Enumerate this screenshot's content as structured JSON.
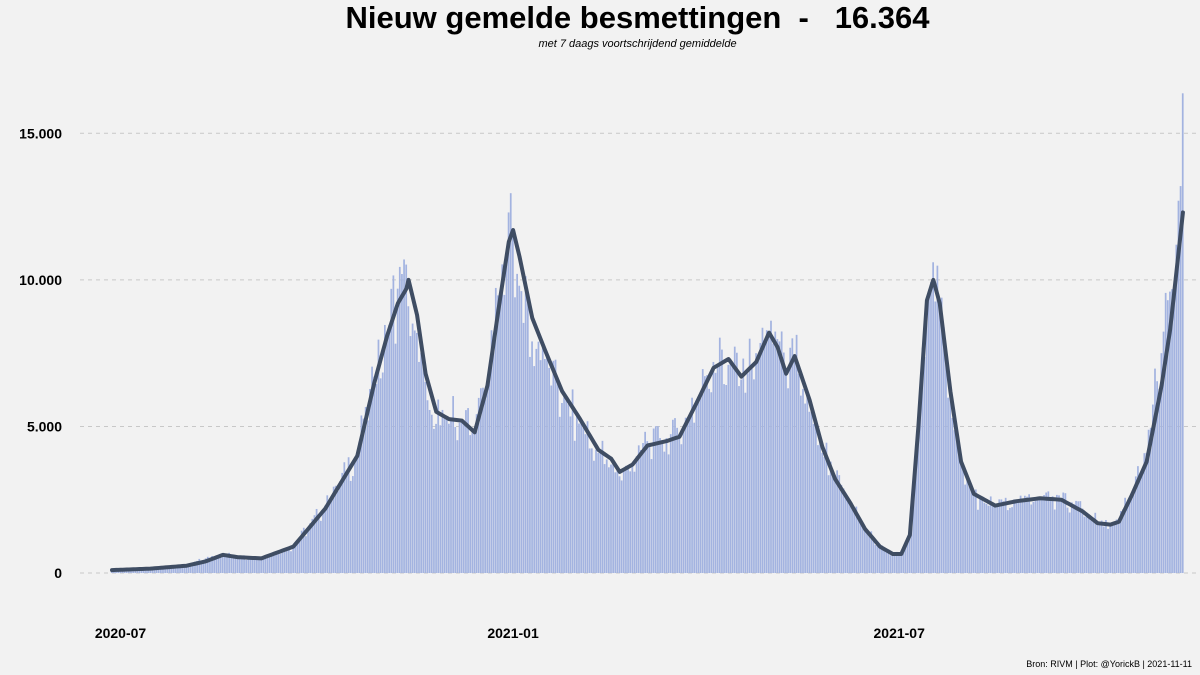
{
  "title": "Nieuw gemelde besmettingen  -   16.364",
  "subtitle": "met 7 daags voortschrijdend gemiddelde",
  "caption": "Bron: RIVM | Plot: @YorickB |  2021-11-11",
  "colors": {
    "background": "#f2f2f2",
    "bars": "#a3b3e0",
    "line": "#3f4d63",
    "grid": "#c8c8c8"
  },
  "chart_data": {
    "type": "bar",
    "x_type": "date",
    "x_start": "2020-06-27",
    "x_end": "2021-11-11",
    "xlim": [
      "2020-06-12",
      "2021-11-19"
    ],
    "ylim": [
      -1500,
      17500
    ],
    "yticks": [
      0,
      5000,
      10000,
      15000
    ],
    "ytick_labels": [
      "0",
      "5.000",
      "10.000",
      "15.000"
    ],
    "xticks": [
      "2020-07-01",
      "2021-01-01",
      "2021-07-01"
    ],
    "xtick_labels": [
      "2020-07",
      "2021-01",
      "2021-07"
    ],
    "grid": "horizontal dashed",
    "series": [
      {
        "kind": "bars",
        "values_at": [
          [
            "2020-06-27",
            80
          ],
          [
            "2020-07-15",
            120
          ],
          [
            "2020-08-01",
            250
          ],
          [
            "2020-08-10",
            500
          ],
          [
            "2020-08-18",
            650
          ],
          [
            "2020-08-25",
            540
          ],
          [
            "2020-09-05",
            520
          ],
          [
            "2020-09-20",
            900
          ],
          [
            "2020-10-05",
            2300
          ],
          [
            "2020-10-20",
            4100
          ],
          [
            "2020-10-28",
            6700
          ],
          [
            "2020-11-03",
            8100
          ],
          [
            "2020-11-08",
            9700
          ],
          [
            "2020-11-10",
            10200
          ],
          [
            "2020-11-13",
            9100
          ],
          [
            "2020-11-18",
            7200
          ],
          [
            "2020-11-24",
            5400
          ],
          [
            "2020-11-30",
            5300
          ],
          [
            "2020-12-08",
            5200
          ],
          [
            "2020-12-14",
            4900
          ],
          [
            "2020-12-20",
            6500
          ],
          [
            "2020-12-26",
            9500
          ],
          [
            "2020-12-30",
            12300
          ],
          [
            "2021-01-01",
            11500
          ],
          [
            "2021-01-04",
            9800
          ],
          [
            "2021-01-10",
            7900
          ],
          [
            "2021-01-16",
            7300
          ],
          [
            "2021-01-24",
            5800
          ],
          [
            "2021-02-01",
            5100
          ],
          [
            "2021-02-10",
            4100
          ],
          [
            "2021-02-16",
            3700
          ],
          [
            "2021-02-20",
            3300
          ],
          [
            "2021-02-26",
            3700
          ],
          [
            "2021-03-05",
            4500
          ],
          [
            "2021-03-14",
            4600
          ],
          [
            "2021-03-20",
            4700
          ],
          [
            "2021-03-28",
            5900
          ],
          [
            "2021-04-05",
            7200
          ],
          [
            "2021-04-12",
            7100
          ],
          [
            "2021-04-18",
            6600
          ],
          [
            "2021-04-25",
            7500
          ],
          [
            "2021-05-01",
            8200
          ],
          [
            "2021-05-06",
            7900
          ],
          [
            "2021-05-09",
            6900
          ],
          [
            "2021-05-13",
            7300
          ],
          [
            "2021-05-20",
            5500
          ],
          [
            "2021-05-26",
            4100
          ],
          [
            "2021-06-01",
            3300
          ],
          [
            "2021-06-08",
            2500
          ],
          [
            "2021-06-15",
            1500
          ],
          [
            "2021-06-22",
            900
          ],
          [
            "2021-06-28",
            650
          ],
          [
            "2021-07-02",
            650
          ],
          [
            "2021-07-06",
            1300
          ],
          [
            "2021-07-10",
            5000
          ],
          [
            "2021-07-14",
            9300
          ],
          [
            "2021-07-17",
            10600
          ],
          [
            "2021-07-20",
            9200
          ],
          [
            "2021-07-25",
            6200
          ],
          [
            "2021-07-30",
            3800
          ],
          [
            "2021-08-05",
            2700
          ],
          [
            "2021-08-10",
            2400
          ],
          [
            "2021-08-15",
            2300
          ],
          [
            "2021-08-25",
            2400
          ],
          [
            "2021-09-05",
            2600
          ],
          [
            "2021-09-15",
            2500
          ],
          [
            "2021-09-25",
            2200
          ],
          [
            "2021-10-02",
            1700
          ],
          [
            "2021-10-08",
            1600
          ],
          [
            "2021-10-12",
            1800
          ],
          [
            "2021-10-18",
            2700
          ],
          [
            "2021-10-25",
            4100
          ],
          [
            "2021-11-01",
            7500
          ],
          [
            "2021-11-05",
            9600
          ],
          [
            "2021-11-08",
            11200
          ],
          [
            "2021-11-09",
            12700
          ],
          [
            "2021-11-10",
            13200
          ],
          [
            "2021-11-11",
            16364
          ]
        ]
      },
      {
        "kind": "line",
        "name": "7 daags voortschrijdend gemiddelde",
        "points": [
          [
            "2020-06-27",
            100
          ],
          [
            "2020-07-15",
            150
          ],
          [
            "2020-08-01",
            250
          ],
          [
            "2020-08-10",
            400
          ],
          [
            "2020-08-18",
            620
          ],
          [
            "2020-08-25",
            540
          ],
          [
            "2020-09-05",
            500
          ],
          [
            "2020-09-20",
            900
          ],
          [
            "2020-10-05",
            2200
          ],
          [
            "2020-10-20",
            4000
          ],
          [
            "2020-10-28",
            6500
          ],
          [
            "2020-11-03",
            8100
          ],
          [
            "2020-11-08",
            9200
          ],
          [
            "2020-11-12",
            9700
          ],
          [
            "2020-11-13",
            10000
          ],
          [
            "2020-11-17",
            8800
          ],
          [
            "2020-11-21",
            6800
          ],
          [
            "2020-11-26",
            5500
          ],
          [
            "2020-12-02",
            5250
          ],
          [
            "2020-12-08",
            5200
          ],
          [
            "2020-12-14",
            4800
          ],
          [
            "2020-12-20",
            6400
          ],
          [
            "2020-12-26",
            9400
          ],
          [
            "2020-12-30",
            11300
          ],
          [
            "2021-01-01",
            11700
          ],
          [
            "2021-01-04",
            10800
          ],
          [
            "2021-01-10",
            8700
          ],
          [
            "2021-01-16",
            7600
          ],
          [
            "2021-01-24",
            6200
          ],
          [
            "2021-02-01",
            5300
          ],
          [
            "2021-02-10",
            4200
          ],
          [
            "2021-02-16",
            3900
          ],
          [
            "2021-02-20",
            3450
          ],
          [
            "2021-02-26",
            3700
          ],
          [
            "2021-03-05",
            4350
          ],
          [
            "2021-03-14",
            4500
          ],
          [
            "2021-03-20",
            4650
          ],
          [
            "2021-03-28",
            5800
          ],
          [
            "2021-04-05",
            7000
          ],
          [
            "2021-04-12",
            7300
          ],
          [
            "2021-04-18",
            6700
          ],
          [
            "2021-04-25",
            7200
          ],
          [
            "2021-05-01",
            8200
          ],
          [
            "2021-05-05",
            7700
          ],
          [
            "2021-05-09",
            6800
          ],
          [
            "2021-05-13",
            7400
          ],
          [
            "2021-05-20",
            5900
          ],
          [
            "2021-05-26",
            4300
          ],
          [
            "2021-06-01",
            3200
          ],
          [
            "2021-06-08",
            2400
          ],
          [
            "2021-06-15",
            1500
          ],
          [
            "2021-06-22",
            900
          ],
          [
            "2021-06-28",
            650
          ],
          [
            "2021-07-02",
            650
          ],
          [
            "2021-07-06",
            1300
          ],
          [
            "2021-07-10",
            5000
          ],
          [
            "2021-07-14",
            9300
          ],
          [
            "2021-07-17",
            10000
          ],
          [
            "2021-07-20",
            9200
          ],
          [
            "2021-07-25",
            6200
          ],
          [
            "2021-07-30",
            3800
          ],
          [
            "2021-08-05",
            2700
          ],
          [
            "2021-08-10",
            2500
          ],
          [
            "2021-08-15",
            2300
          ],
          [
            "2021-08-25",
            2450
          ],
          [
            "2021-09-05",
            2550
          ],
          [
            "2021-09-15",
            2500
          ],
          [
            "2021-09-25",
            2100
          ],
          [
            "2021-10-02",
            1700
          ],
          [
            "2021-10-08",
            1650
          ],
          [
            "2021-10-12",
            1750
          ],
          [
            "2021-10-18",
            2650
          ],
          [
            "2021-10-25",
            3800
          ],
          [
            "2021-11-01",
            6400
          ],
          [
            "2021-11-05",
            8300
          ],
          [
            "2021-11-08",
            10300
          ],
          [
            "2021-11-11",
            12300
          ]
        ]
      }
    ]
  }
}
